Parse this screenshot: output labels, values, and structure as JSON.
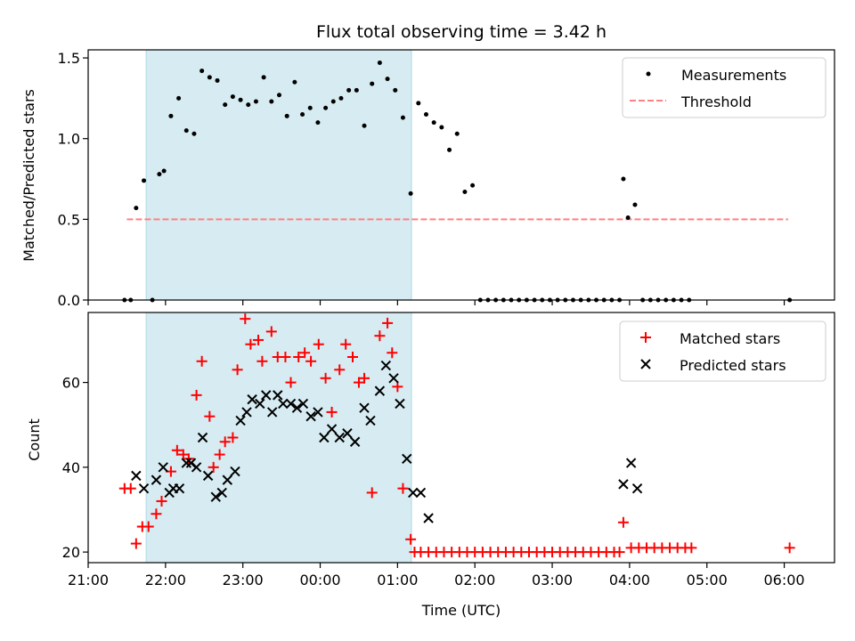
{
  "title": "Flux total observing time = 3.42 h",
  "colors": {
    "measurement": "#000000",
    "threshold": "#ff8080",
    "matched": "#ff0000",
    "predicted": "#000000",
    "shade": "#add8e6"
  },
  "chart_data": [
    {
      "type": "scatter",
      "ylabel": "Matched/Predicted stars",
      "xlim": [
        21.0,
        30.65
      ],
      "ylim": [
        0,
        1.55
      ],
      "yticks": [
        0.0,
        0.5,
        1.0,
        1.5
      ],
      "ytick_labels": [
        "0.0",
        "0.5",
        "1.0",
        "1.5"
      ],
      "shade_x": [
        21.75,
        25.18
      ],
      "legend": [
        "Measurements",
        "Threshold"
      ],
      "legend_position": "top-right",
      "threshold": {
        "x": [
          21.5,
          30.05
        ],
        "y": 0.5
      },
      "series": [
        {
          "name": "Measurements",
          "marker": "dot",
          "points": [
            [
              21.47,
              0.0
            ],
            [
              21.55,
              0.0
            ],
            [
              21.62,
              0.57
            ],
            [
              21.72,
              0.74
            ],
            [
              21.83,
              0.0
            ],
            [
              21.92,
              0.78
            ],
            [
              21.98,
              0.8
            ],
            [
              22.07,
              1.14
            ],
            [
              22.17,
              1.25
            ],
            [
              22.27,
              1.05
            ],
            [
              22.37,
              1.03
            ],
            [
              22.47,
              1.42
            ],
            [
              22.57,
              1.38
            ],
            [
              22.67,
              1.36
            ],
            [
              22.77,
              1.21
            ],
            [
              22.87,
              1.26
            ],
            [
              22.97,
              1.24
            ],
            [
              23.07,
              1.21
            ],
            [
              23.17,
              1.23
            ],
            [
              23.27,
              1.38
            ],
            [
              23.37,
              1.23
            ],
            [
              23.47,
              1.27
            ],
            [
              23.57,
              1.14
            ],
            [
              23.67,
              1.35
            ],
            [
              23.77,
              1.15
            ],
            [
              23.87,
              1.19
            ],
            [
              23.97,
              1.1
            ],
            [
              24.07,
              1.19
            ],
            [
              24.17,
              1.23
            ],
            [
              24.27,
              1.25
            ],
            [
              24.37,
              1.3
            ],
            [
              24.47,
              1.3
            ],
            [
              24.57,
              1.08
            ],
            [
              24.67,
              1.34
            ],
            [
              24.77,
              1.47
            ],
            [
              24.87,
              1.37
            ],
            [
              24.97,
              1.3
            ],
            [
              25.07,
              1.13
            ],
            [
              25.17,
              0.66
            ],
            [
              25.27,
              1.22
            ],
            [
              25.37,
              1.15
            ],
            [
              25.47,
              1.1
            ],
            [
              25.57,
              1.07
            ],
            [
              25.67,
              0.93
            ],
            [
              25.77,
              1.03
            ],
            [
              25.87,
              0.67
            ],
            [
              25.97,
              0.71
            ],
            [
              26.07,
              0.0
            ],
            [
              26.17,
              0.0
            ],
            [
              26.27,
              0.0
            ],
            [
              26.37,
              0.0
            ],
            [
              26.47,
              0.0
            ],
            [
              26.57,
              0.0
            ],
            [
              26.67,
              0.0
            ],
            [
              26.77,
              0.0
            ],
            [
              26.87,
              0.0
            ],
            [
              26.97,
              0.0
            ],
            [
              27.07,
              0.0
            ],
            [
              27.17,
              0.0
            ],
            [
              27.27,
              0.0
            ],
            [
              27.37,
              0.0
            ],
            [
              27.47,
              0.0
            ],
            [
              27.57,
              0.0
            ],
            [
              27.67,
              0.0
            ],
            [
              27.77,
              0.0
            ],
            [
              27.87,
              0.0
            ],
            [
              27.92,
              0.75
            ],
            [
              27.98,
              0.51
            ],
            [
              28.07,
              0.59
            ],
            [
              28.17,
              0.0
            ],
            [
              28.27,
              0.0
            ],
            [
              28.37,
              0.0
            ],
            [
              28.47,
              0.0
            ],
            [
              28.57,
              0.0
            ],
            [
              28.67,
              0.0
            ],
            [
              28.77,
              0.0
            ],
            [
              30.07,
              0.0
            ]
          ]
        }
      ]
    },
    {
      "type": "scatter",
      "ylabel": "Count",
      "xlabel": "Time (UTC)",
      "xlim": [
        21.0,
        30.65
      ],
      "ylim": [
        17.5,
        76.5
      ],
      "yticks": [
        20,
        40,
        60
      ],
      "ytick_labels": [
        "20",
        "40",
        "60"
      ],
      "xticks": [
        21,
        22,
        23,
        24,
        25,
        26,
        27,
        28,
        29,
        30
      ],
      "xtick_labels": [
        "21:00",
        "22:00",
        "23:00",
        "00:00",
        "01:00",
        "02:00",
        "03:00",
        "04:00",
        "05:00",
        "06:00"
      ],
      "shade_x": [
        21.75,
        25.18
      ],
      "legend": [
        "Matched stars",
        "Predicted stars"
      ],
      "legend_position": "top-right",
      "series": [
        {
          "name": "Matched stars",
          "marker": "plus",
          "points": [
            [
              21.47,
              35
            ],
            [
              21.55,
              35
            ],
            [
              21.62,
              22
            ],
            [
              21.7,
              26
            ],
            [
              21.78,
              26
            ],
            [
              21.88,
              29
            ],
            [
              21.95,
              32
            ],
            [
              22.07,
              39
            ],
            [
              22.15,
              44
            ],
            [
              22.23,
              43
            ],
            [
              22.3,
              42
            ],
            [
              22.4,
              57
            ],
            [
              22.47,
              65
            ],
            [
              22.57,
              52
            ],
            [
              22.62,
              40
            ],
            [
              22.7,
              43
            ],
            [
              22.77,
              46
            ],
            [
              22.87,
              47
            ],
            [
              22.93,
              63
            ],
            [
              23.03,
              75
            ],
            [
              23.1,
              69
            ],
            [
              23.2,
              70
            ],
            [
              23.25,
              65
            ],
            [
              23.37,
              72
            ],
            [
              23.45,
              66
            ],
            [
              23.55,
              66
            ],
            [
              23.62,
              60
            ],
            [
              23.72,
              66
            ],
            [
              23.8,
              67
            ],
            [
              23.88,
              65
            ],
            [
              23.98,
              69
            ],
            [
              24.07,
              61
            ],
            [
              24.15,
              53
            ],
            [
              24.25,
              63
            ],
            [
              24.33,
              69
            ],
            [
              24.42,
              66
            ],
            [
              24.5,
              60
            ],
            [
              24.57,
              61
            ],
            [
              24.67,
              34
            ],
            [
              24.77,
              71
            ],
            [
              24.87,
              74
            ],
            [
              24.93,
              67
            ],
            [
              25.0,
              59
            ],
            [
              25.07,
              35
            ],
            [
              25.17,
              23
            ],
            [
              25.22,
              20
            ],
            [
              25.3,
              20
            ],
            [
              25.4,
              20
            ],
            [
              25.5,
              20
            ],
            [
              25.6,
              20
            ],
            [
              25.7,
              20
            ],
            [
              25.8,
              20
            ],
            [
              25.9,
              20
            ],
            [
              26.0,
              20
            ],
            [
              26.1,
              20
            ],
            [
              26.2,
              20
            ],
            [
              26.3,
              20
            ],
            [
              26.4,
              20
            ],
            [
              26.5,
              20
            ],
            [
              26.6,
              20
            ],
            [
              26.7,
              20
            ],
            [
              26.8,
              20
            ],
            [
              26.9,
              20
            ],
            [
              27.0,
              20
            ],
            [
              27.1,
              20
            ],
            [
              27.2,
              20
            ],
            [
              27.3,
              20
            ],
            [
              27.4,
              20
            ],
            [
              27.5,
              20
            ],
            [
              27.6,
              20
            ],
            [
              27.7,
              20
            ],
            [
              27.8,
              20
            ],
            [
              27.87,
              20
            ],
            [
              27.92,
              27
            ],
            [
              28.02,
              21
            ],
            [
              28.12,
              21
            ],
            [
              28.22,
              21
            ],
            [
              28.32,
              21
            ],
            [
              28.42,
              21
            ],
            [
              28.52,
              21
            ],
            [
              28.62,
              21
            ],
            [
              28.72,
              21
            ],
            [
              28.8,
              21
            ],
            [
              30.07,
              21
            ]
          ]
        },
        {
          "name": "Predicted stars",
          "marker": "x",
          "points": [
            [
              21.62,
              38
            ],
            [
              21.72,
              35
            ],
            [
              21.88,
              37
            ],
            [
              21.97,
              40
            ],
            [
              22.05,
              34
            ],
            [
              22.1,
              35
            ],
            [
              22.18,
              35
            ],
            [
              22.27,
              41
            ],
            [
              22.33,
              41
            ],
            [
              22.4,
              40
            ],
            [
              22.48,
              47
            ],
            [
              22.55,
              38
            ],
            [
              22.65,
              33
            ],
            [
              22.73,
              34
            ],
            [
              22.8,
              37
            ],
            [
              22.9,
              39
            ],
            [
              22.97,
              51
            ],
            [
              23.05,
              53
            ],
            [
              23.12,
              56
            ],
            [
              23.22,
              55
            ],
            [
              23.3,
              57
            ],
            [
              23.38,
              53
            ],
            [
              23.45,
              57
            ],
            [
              23.52,
              55
            ],
            [
              23.62,
              55
            ],
            [
              23.7,
              54
            ],
            [
              23.78,
              55
            ],
            [
              23.88,
              52
            ],
            [
              23.97,
              53
            ],
            [
              24.05,
              47
            ],
            [
              24.15,
              49
            ],
            [
              24.25,
              47
            ],
            [
              24.35,
              48
            ],
            [
              24.45,
              46
            ],
            [
              24.57,
              54
            ],
            [
              24.65,
              51
            ],
            [
              24.77,
              58
            ],
            [
              24.85,
              64
            ],
            [
              24.95,
              61
            ],
            [
              25.03,
              55
            ],
            [
              25.12,
              42
            ],
            [
              25.2,
              34
            ],
            [
              25.3,
              34
            ],
            [
              25.4,
              28
            ],
            [
              27.92,
              36
            ],
            [
              28.02,
              41
            ],
            [
              28.1,
              35
            ]
          ]
        }
      ]
    }
  ]
}
